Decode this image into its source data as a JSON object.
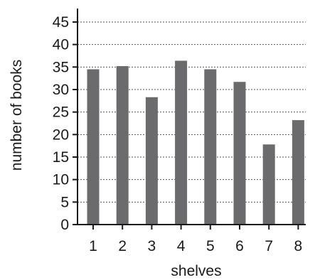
{
  "chart_data": {
    "type": "bar",
    "title": "",
    "xlabel": "shelves",
    "ylabel": "number of books",
    "categories": [
      "1",
      "2",
      "3",
      "4",
      "5",
      "6",
      "7",
      "8"
    ],
    "values": [
      34.5,
      35.2,
      28.3,
      36.4,
      34.5,
      31.7,
      17.8,
      23.2
    ],
    "ylim": [
      0,
      45
    ],
    "yticks": [
      0,
      5,
      10,
      15,
      20,
      25,
      30,
      35,
      40,
      45
    ],
    "grid": "horizontal-dotted",
    "legend": "none",
    "colors": {
      "bar": "#6b6b6d",
      "axis": "#1a1a1a",
      "grid": "#555555"
    }
  }
}
